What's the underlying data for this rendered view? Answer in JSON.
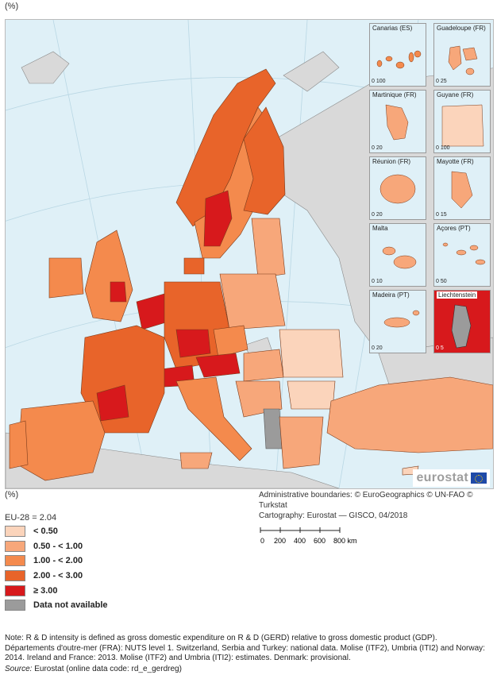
{
  "header": {
    "unit_label": "(%)"
  },
  "brand": {
    "name": "eurostat",
    "icon": "eu-flag-icon"
  },
  "insets": [
    {
      "title": "Canarias (ES)",
      "scale": "0  100"
    },
    {
      "title": "Guadeloupe (FR)",
      "scale": "0  25"
    },
    {
      "title": "Martinique (FR)",
      "scale": "0  20"
    },
    {
      "title": "Guyane (FR)",
      "scale": "0  100"
    },
    {
      "title": "Réunion (FR)",
      "scale": "0  20"
    },
    {
      "title": "Mayotte (FR)",
      "scale": "0  15"
    },
    {
      "title": "Malta",
      "scale": "0  10"
    },
    {
      "title": "Açores (PT)",
      "scale": "0  50"
    },
    {
      "title": "Madeira (PT)",
      "scale": "0  20"
    },
    {
      "title": "Liechtenstein",
      "scale": "0  5"
    }
  ],
  "credits": {
    "line1": "Administrative boundaries: © EuroGeographics © UN-FAO © Turkstat",
    "line2": "Cartography: Eurostat — GISCO, 04/2018"
  },
  "legend": {
    "unit_label": "(%)",
    "eu_average": "EU-28 = 2.04",
    "classes": [
      {
        "label": "< 0.50",
        "color": "#fbd4bb"
      },
      {
        "label": "0.50 - < 1.00",
        "color": "#f7a77a"
      },
      {
        "label": "1.00 - < 2.00",
        "color": "#f48a4d"
      },
      {
        "label": "2.00 - < 3.00",
        "color": "#e8642a"
      },
      {
        "label": "≥ 3.00",
        "color": "#d7191c"
      },
      {
        "label": "Data not available",
        "color": "#9b9b9b"
      }
    ]
  },
  "scalebar": {
    "ticks": [
      "0",
      "200",
      "400",
      "600",
      "800 km"
    ]
  },
  "note": "Note: R & D intensity is defined as gross domestic expenditure on R & D (GERD) relative to gross domestic product (GDP). Départements d'outre-mer (FRA): NUTS level 1. Switzerland, Serbia and Turkey: national data. Molise (ITF2), Umbria (ITI2) and Norway: 2014. Ireland and France: 2013. Molise (ITF2) and Umbria (ITI2): estimates. Denmark: provisional.",
  "source": {
    "label": "Source:",
    "text": " Eurostat (online data code: rd_e_gerdreg)"
  },
  "colors": {
    "sea": "#dff0f7",
    "non_eu_land": "#d9d9d9"
  }
}
